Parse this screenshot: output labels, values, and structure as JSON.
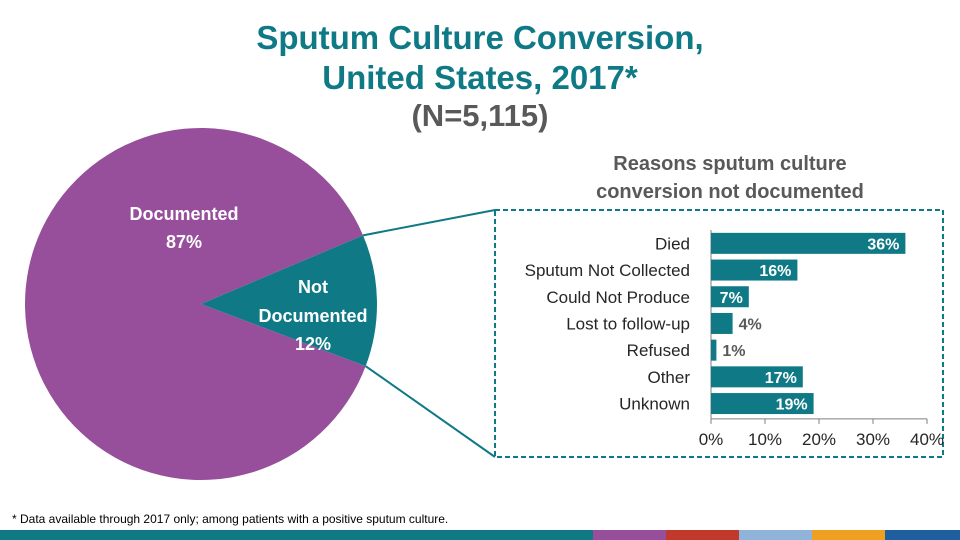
{
  "header": {
    "title_line1": "Sputum Culture Conversion,",
    "title_line2": "United States, 2017*",
    "subtitle": "(N=5,115)"
  },
  "footnote": "* Data available through 2017 only; among patients with a positive sputum culture.",
  "colors": {
    "teal": "#0f7a86",
    "purple": "#974f9c",
    "gray_text": "#595959"
  },
  "bottom_strip_colors": [
    "#0f7a86",
    "#974f9c",
    "#c0392b",
    "#8fb3d9",
    "#f0a020",
    "#1f5f9f"
  ],
  "chart_data": [
    {
      "type": "pie",
      "slices": [
        {
          "label_line1": "Documented",
          "label_line2": "",
          "value": 87,
          "value_label": "87%",
          "color": "#974f9c"
        },
        {
          "label_line1": "Not",
          "label_line2": "Documented",
          "value": 12,
          "value_label": "12%",
          "color": "#0f7a86"
        }
      ]
    },
    {
      "type": "bar",
      "orientation": "horizontal",
      "title_line1": "Reasons sputum culture",
      "title_line2": "conversion not documented",
      "categories": [
        "Died",
        "Sputum Not Collected",
        "Could Not Produce",
        "Lost to follow-up",
        "Refused",
        "Other",
        "Unknown"
      ],
      "values": [
        36,
        16,
        7,
        4,
        1,
        17,
        19
      ],
      "value_labels": [
        "36%",
        "16%",
        "7%",
        "4%",
        "1%",
        "17%",
        "19%"
      ],
      "xlim": [
        0,
        40
      ],
      "xticks": [
        "0%",
        "10%",
        "20%",
        "30%",
        "40%"
      ],
      "color": "#0f7a86",
      "grid": false
    }
  ]
}
